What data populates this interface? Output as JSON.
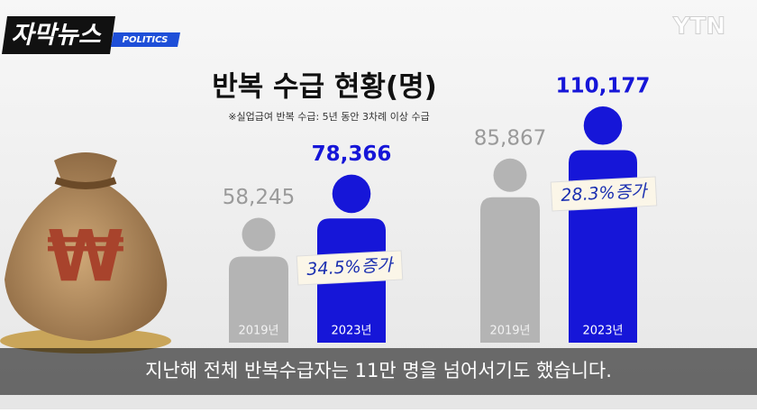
{
  "logo": {
    "title": "자막뉴스",
    "tag": "POLITICS"
  },
  "broadcaster": "YTN",
  "caption": "지난해 전체 반복수급자는 11만 명을 넘어서기도 했습니다.",
  "chart_data": {
    "type": "pictogram",
    "title": "반복 수급 현황(명)",
    "subtitle": "※실업급여 반복 수급: 5년 동안 3차례 이상 수급",
    "categories": [
      "2019년",
      "2023년",
      "2019년",
      "2023년"
    ],
    "values": [
      58245,
      78366,
      85867,
      110177
    ],
    "value_labels": [
      "58,245",
      "78,366",
      "85,867",
      "110,177"
    ],
    "colors": [
      "#b4b4b4",
      "#1616d8",
      "#b4b4b4",
      "#1616d8"
    ],
    "annotations": [
      "34.5%증가",
      "28.3%증가"
    ]
  }
}
